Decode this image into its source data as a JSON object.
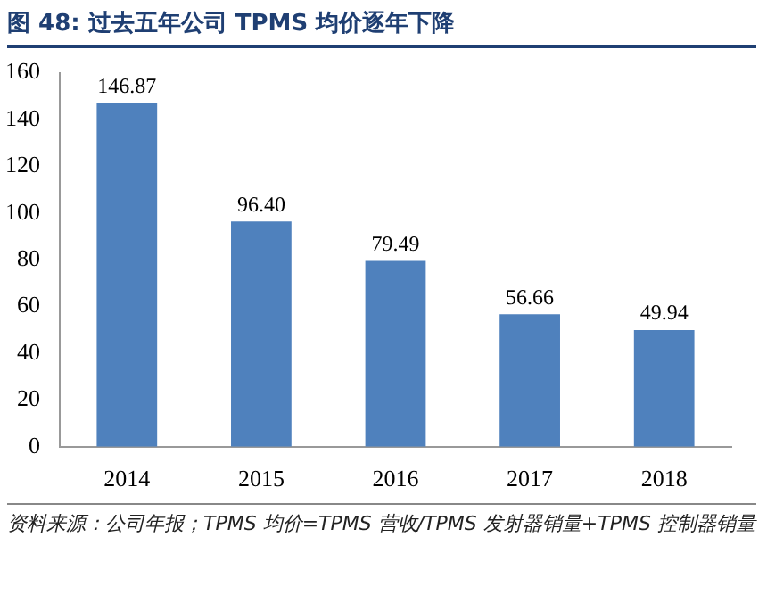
{
  "chart_data": {
    "type": "bar",
    "title": "图 48: 过去五年公司 TPMS 均价逐年下降",
    "categories": [
      "2014",
      "2015",
      "2016",
      "2017",
      "2018"
    ],
    "values": [
      146.87,
      96.4,
      79.49,
      56.66,
      49.94
    ],
    "value_labels": [
      "146.87",
      "96.40",
      "79.49",
      "56.66",
      "49.94"
    ],
    "color": "#4f81bd",
    "ylim": [
      0,
      160
    ],
    "yticks": [
      0,
      20,
      40,
      60,
      80,
      100,
      120,
      140,
      160
    ],
    "grid": false,
    "legend": false,
    "annotations": [
      "资料来源：公司年报；TPMS 均价=TPMS 营收/TPMS 发射器销量+TPMS 控制器销量"
    ]
  }
}
